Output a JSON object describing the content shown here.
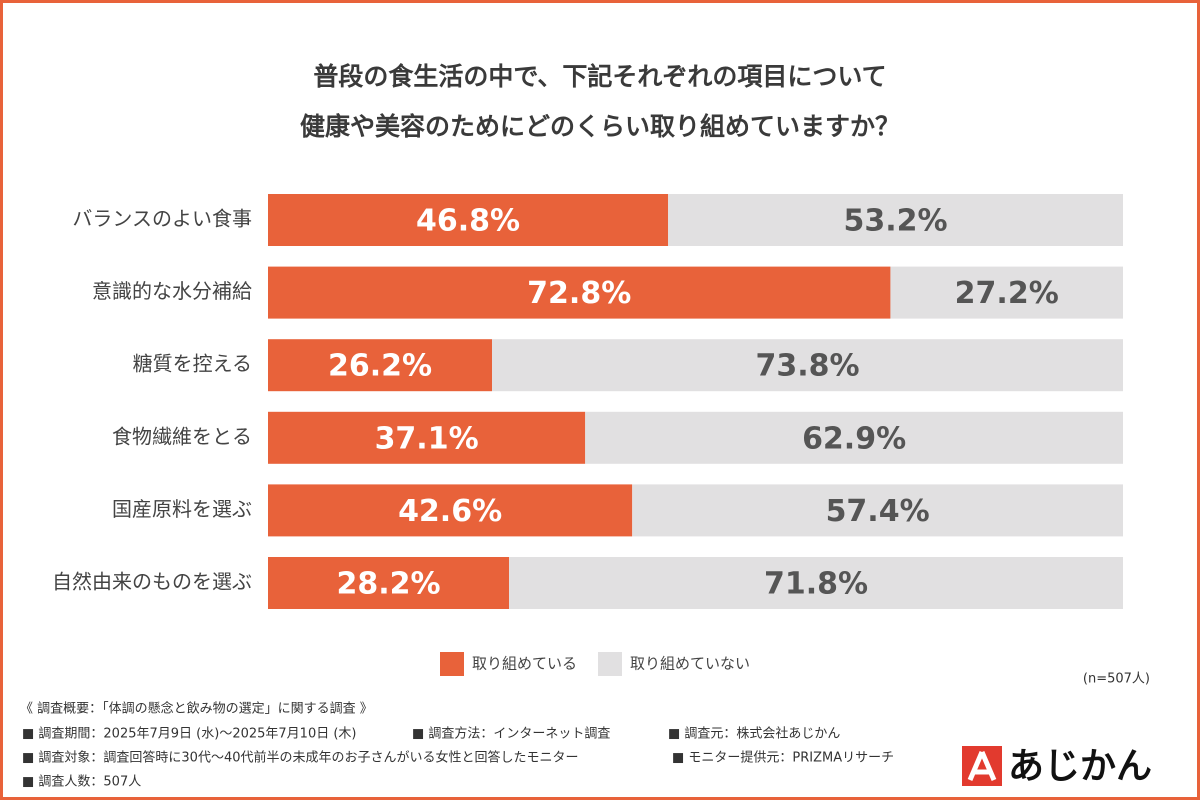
{
  "chart_data": {
    "type": "stacked-bar-horizontal",
    "title": [
      "普段の食生活の中で、下記それぞれの項目について",
      "健康や美容のためにどのくらい取り組めていますか？"
    ],
    "categories": [
      "バランスのよい食事",
      "意識的な水分補給",
      "糖質を控える",
      "食物繊維をとる",
      "国産原料を選ぶ",
      "自然由来のものを選ぶ"
    ],
    "series": [
      {
        "name": "取り組めている",
        "color": "#e8623a",
        "label_color": "#ffffff",
        "values": [
          46.8,
          72.8,
          26.2,
          37.1,
          42.6,
          28.2
        ],
        "value_labels": [
          "46.8%",
          "72.8%",
          "26.2%",
          "37.1%",
          "42.6%",
          "28.2%"
        ]
      },
      {
        "name": "取り組めていない",
        "color": "#e1e0e1",
        "label_color": "#555555",
        "values": [
          53.2,
          27.2,
          73.8,
          62.9,
          57.4,
          71.8
        ],
        "value_labels": [
          "53.2%",
          "27.2%",
          "73.8%",
          "62.9%",
          "57.4%",
          "71.8%"
        ]
      }
    ],
    "xlim": [
      0,
      100
    ],
    "legend": "bottom",
    "sample_size": "(n=507人)"
  },
  "survey": {
    "heading": "《 調査概要：「体調の懸念と飲み物の選定」に関する調査 》",
    "rows": [
      [
        "■ 調査期間：2025年7月9日 (水)～2025年7月10日 (木)",
        "■ 調査方法：インターネット調査",
        "■ 調査元：株式会社あじかん"
      ],
      [
        "■ 調査対象：調査回答時に30代～40代前半の未成年のお子さんがいる女性と回答したモニター",
        "■ モニター提供元：PRIZMAリサーチ"
      ],
      [
        "■ 調査人数：507人"
      ]
    ]
  },
  "logo": "あじかん"
}
